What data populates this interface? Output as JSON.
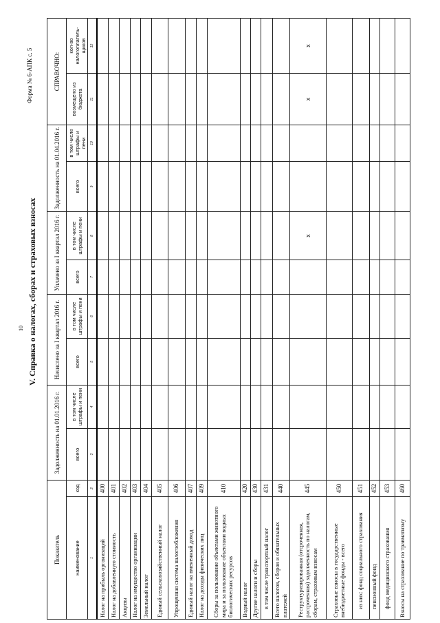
{
  "header": {
    "form_label": "Форма № 6-АПК с. 5",
    "page_number": "10",
    "title": "V. Справка о налогах, сборах и страховых взносах"
  },
  "table": {
    "groups": {
      "indicator": "Показатель",
      "debt_start": "Задолженность на 01.01.2016 г.",
      "accrued": "Начислено за I квартал 2016 г.",
      "paid": "Уплачено за I квартал 2016 г.",
      "debt_end": "Задолженность на 01.04.2016 г.",
      "reference": "СПРАВОЧНО:"
    },
    "subheaders": [
      "наименование",
      "код",
      "всего",
      "в том числе штрафы и пени",
      "всего",
      "в том числе штрафы и пени",
      "всего",
      "в том числе штрафы и пени",
      "всего",
      "в том числе штрафы и пени",
      "возмещено из бюджета",
      "кол-во налогоплатель-щиков"
    ],
    "column_numbers": [
      "1",
      "2",
      "3",
      "4",
      "5",
      "6",
      "7",
      "8",
      "9",
      "10",
      "11",
      "12"
    ],
    "rows": [
      {
        "name": "Налог на прибыль организаций",
        "code": "400"
      },
      {
        "name": "Налог на добавленную стоимость",
        "code": "401"
      },
      {
        "name": "Акцизы",
        "code": "402"
      },
      {
        "name": "Налог на имущество организации",
        "code": "403"
      },
      {
        "name": "Земельный налог",
        "code": "404"
      },
      {
        "name": "Единый сельскохозяйственный налог",
        "code": "405"
      },
      {
        "name": "Упрощенная система налогообложения",
        "code": "406"
      },
      {
        "name": "Единый налог на вмененный доход",
        "code": "407"
      },
      {
        "name": "Налог на доходы физических лиц",
        "code": "409"
      },
      {
        "name": "Сборы за пользование объектами животного мира и за пользование объектами водных биологических ресурсов",
        "code": "410"
      },
      {
        "name": "Водный налог",
        "code": "420"
      },
      {
        "name": "Другие налоги и сборы",
        "code": "430"
      },
      {
        "name": "в том числе транспортный налог",
        "code": "431",
        "indent": true
      },
      {
        "name": "Всего налогов, сборов и обязательных платежей",
        "code": "440"
      },
      {
        "name": "Реструктуризированная (отсроченная, рассроченная) задолженность по налогам, сборам, страховым взносам",
        "code": "445",
        "marks": {
          "8": "x",
          "11": "x",
          "12": "x"
        }
      },
      {
        "name": "Страховые взносы в государственные внебюджетные фонды - всего",
        "code": "450"
      },
      {
        "name": "из них: фонд социального страхования",
        "code": "451",
        "indent": true
      },
      {
        "name": "пенсионный фонд",
        "code": "452",
        "indent": true
      },
      {
        "name": "фонд медицинского страхования",
        "code": "453",
        "indent": true
      },
      {
        "name": "Взносы на страхование по травматизму",
        "code": "460"
      }
    ]
  }
}
